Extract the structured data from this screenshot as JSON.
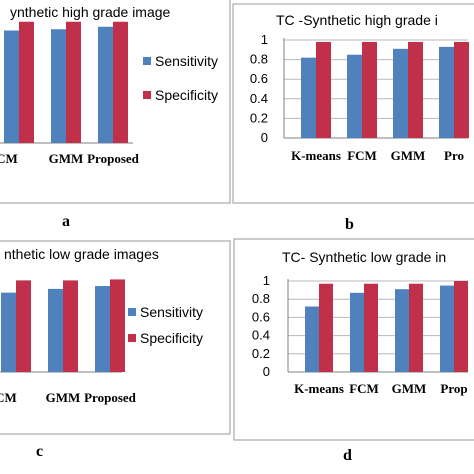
{
  "colors": {
    "sensitivity": "#4f81bd",
    "specificity": "#c0304a",
    "frame": "#9a9a9a",
    "grid": "#b8b8b8"
  },
  "panel_labels": [
    "a",
    "b",
    "c",
    "d"
  ],
  "chart_data": [
    {
      "type": "bar",
      "title": "ynthetic high grade image",
      "categories": [
        "FCM",
        "GMM",
        "Proposed"
      ],
      "series": [
        {
          "name": "Sensitivity",
          "values": [
            0.9,
            0.91,
            0.93
          ]
        },
        {
          "name": "Specificity",
          "values": [
            0.97,
            0.97,
            0.97
          ]
        }
      ],
      "ylim": [
        0,
        1
      ],
      "legend": "right",
      "grid": false
    },
    {
      "type": "bar",
      "title": "TC -Synthetic high grade i",
      "categories": [
        "K-means",
        "FCM",
        "GMM",
        "Pro"
      ],
      "series": [
        {
          "values": [
            0.82,
            0.85,
            0.91,
            0.93
          ]
        },
        {
          "values": [
            0.98,
            0.98,
            0.98,
            0.98
          ]
        }
      ],
      "yticks": [
        "0",
        "0.2",
        "0.4",
        "0.6",
        "0.8",
        "1"
      ],
      "ylim": [
        0,
        1
      ],
      "grid": true
    },
    {
      "type": "bar",
      "title": "nthetic low grade images",
      "categories": [
        "FCM",
        "GMM",
        "Proposed"
      ],
      "series": [
        {
          "name": "Sensitivity",
          "values": [
            0.84,
            0.88,
            0.91
          ]
        },
        {
          "name": "Specificity",
          "values": [
            0.97,
            0.97,
            0.98
          ]
        }
      ],
      "ylim": [
        0,
        1
      ],
      "legend": "right",
      "grid": false
    },
    {
      "type": "bar",
      "title": "TC- Synthetic low grade in",
      "categories": [
        "K-means",
        "FCM",
        "GMM",
        "Prop"
      ],
      "series": [
        {
          "values": [
            0.72,
            0.87,
            0.91,
            0.95
          ]
        },
        {
          "values": [
            0.97,
            0.97,
            0.97,
            1.0
          ]
        }
      ],
      "yticks": [
        "0",
        "0.2",
        "0.4",
        "0.6",
        "0.8",
        "1"
      ],
      "ylim": [
        0,
        1
      ],
      "grid": true
    }
  ]
}
